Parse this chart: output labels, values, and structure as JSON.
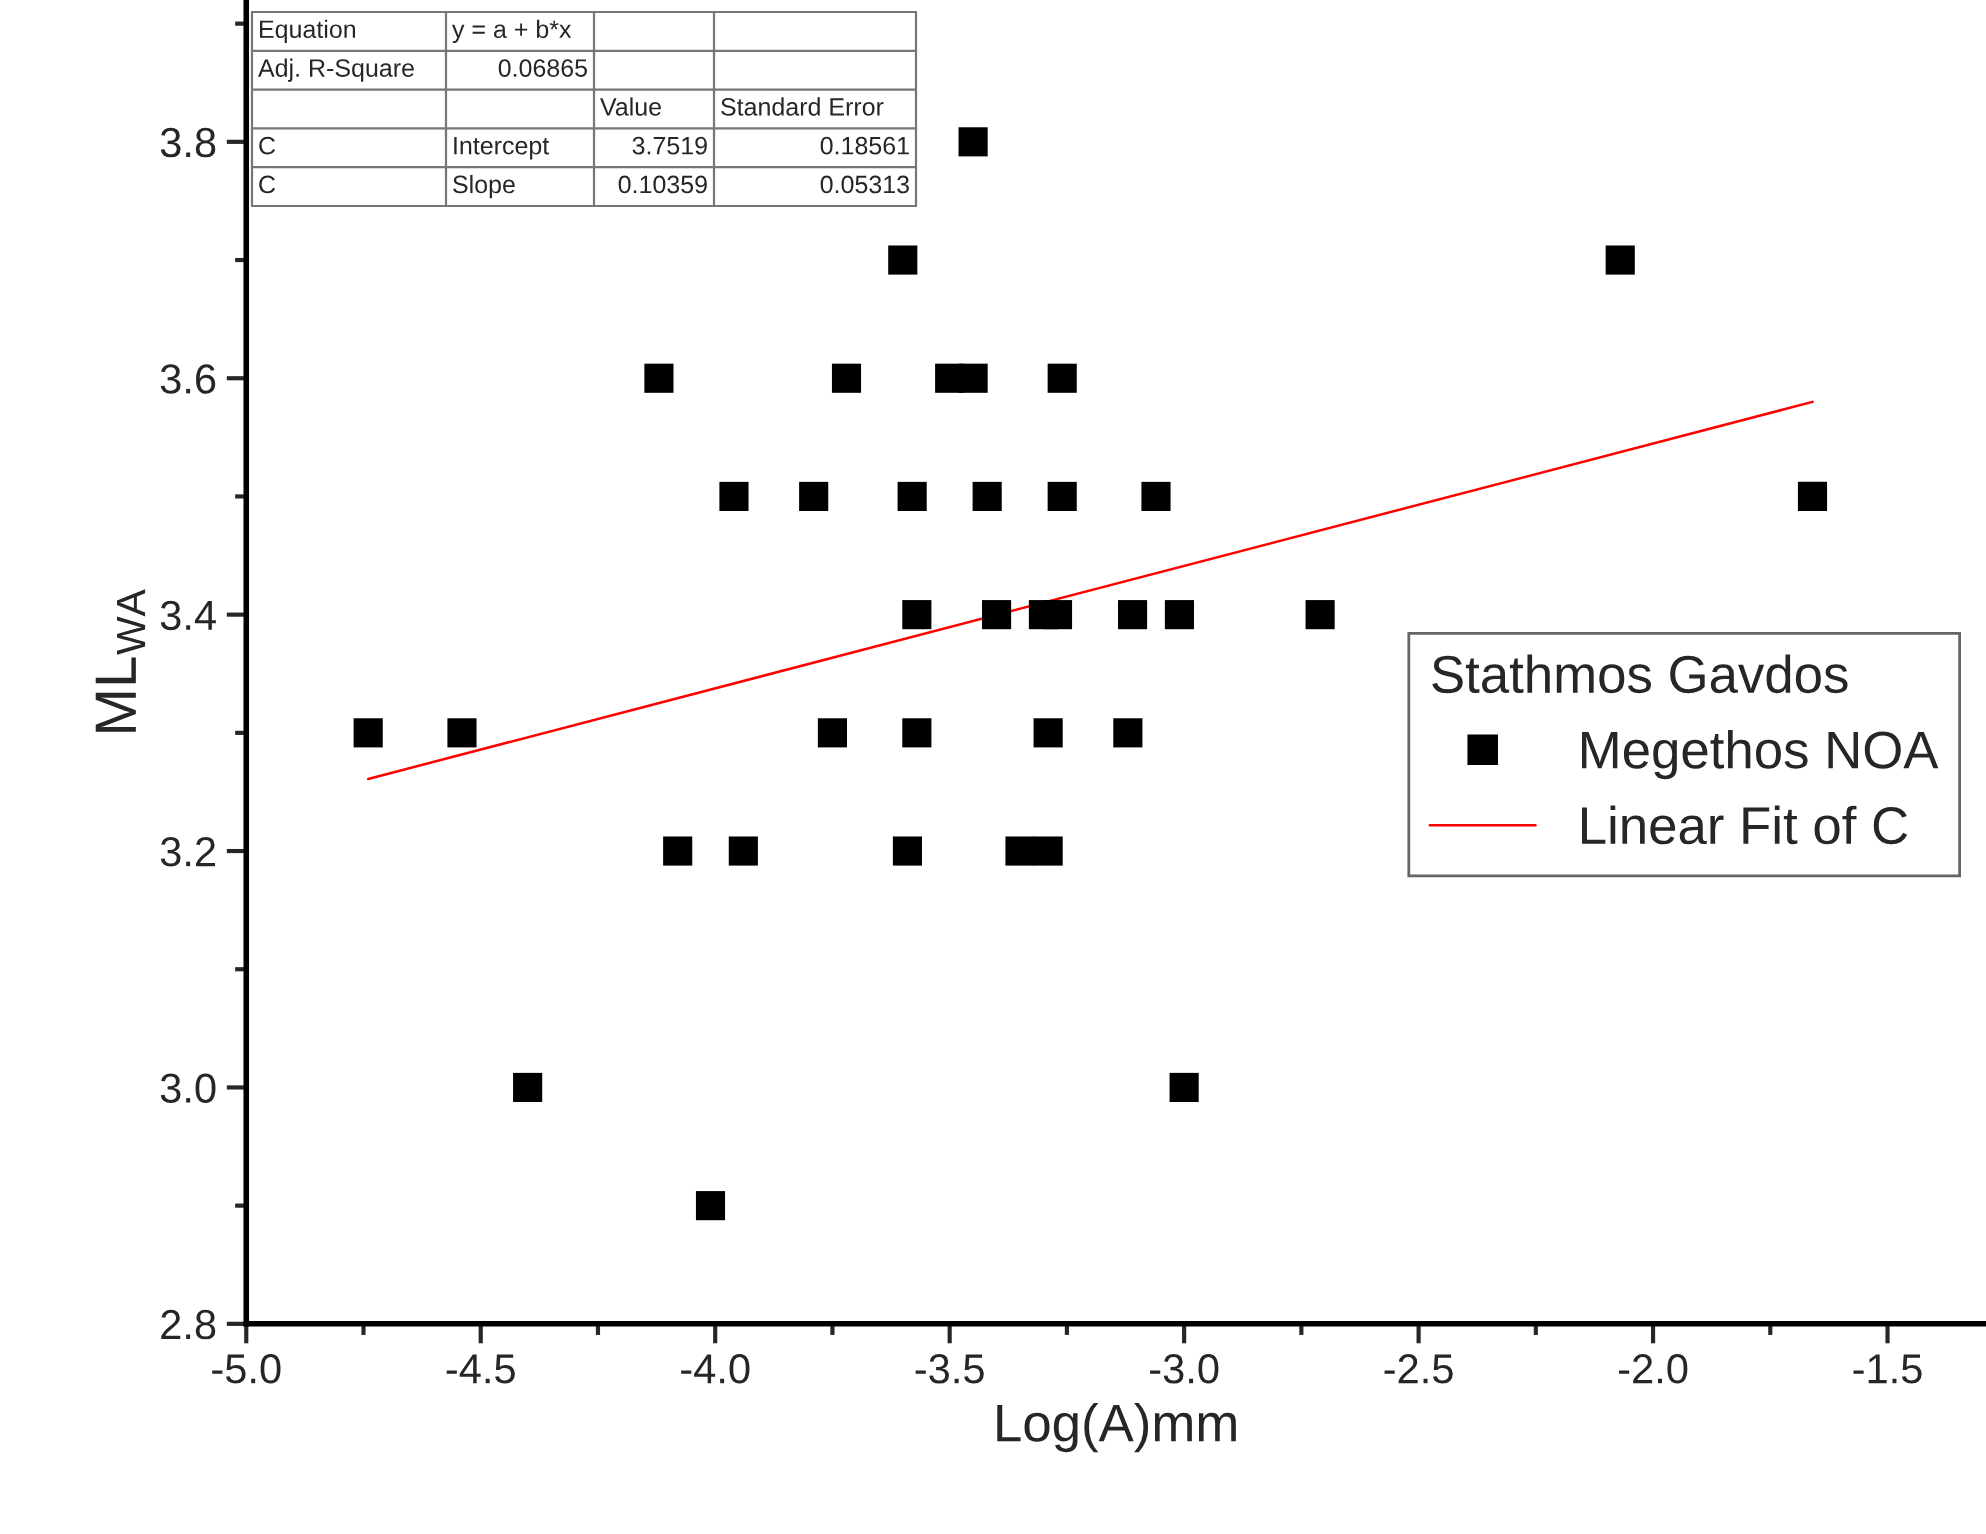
{
  "chart_data": {
    "type": "scatter",
    "xlabel": "Log(A)mm",
    "ylabel": "ML$_{WA}$",
    "legend_title": "Stathmos Gavdos",
    "series": [
      {
        "name": "Megethos NOA",
        "color": "#000000",
        "marker": "square",
        "x": [
          -3.45,
          -3.6,
          -2.07,
          -4.12,
          -3.72,
          -3.5,
          -3.45,
          -3.26,
          -3.96,
          -3.79,
          -3.58,
          -3.42,
          -3.26,
          -3.06,
          -1.66,
          -3.57,
          -3.4,
          -3.3,
          -3.27,
          -3.11,
          -3.01,
          -2.71,
          -4.74,
          -4.54,
          -3.75,
          -3.57,
          -3.29,
          -3.12,
          -4.08,
          -3.94,
          -3.59,
          -3.35,
          -3.29,
          -4.4,
          -3.0,
          -4.01
        ],
        "values": [
          3.8,
          3.7,
          3.7,
          3.6,
          3.6,
          3.6,
          3.6,
          3.6,
          3.5,
          3.5,
          3.5,
          3.5,
          3.5,
          3.5,
          3.5,
          3.4,
          3.4,
          3.4,
          3.4,
          3.4,
          3.4,
          3.4,
          3.3,
          3.3,
          3.3,
          3.3,
          3.3,
          3.3,
          3.2,
          3.2,
          3.2,
          3.2,
          3.2,
          3.0,
          3.0,
          2.9
        ]
      },
      {
        "name": "Linear Fit of C",
        "type": "line",
        "color": "#ff0000",
        "line_style": "solid",
        "x": [
          -4.74,
          -1.66
        ],
        "values": [
          3.261,
          3.58
        ]
      }
    ],
    "annotations": [
      "Equation",
      "y = a + b*x",
      "Adj. R-Square",
      "0.06865",
      "Value",
      "Standard Error",
      "C",
      "Intercept",
      "3.7519",
      "0.18561",
      "C",
      "Slope",
      "0.10359",
      "0.05313"
    ],
    "xlim": [
      -5.0,
      -1.29
    ],
    "ylim": [
      2.8,
      3.92
    ],
    "xticks": [
      {
        "value": -5.0,
        "label": "-5.0"
      },
      {
        "value": -4.5,
        "label": "-4.5"
      },
      {
        "value": -4.0,
        "label": "-4.0"
      },
      {
        "value": -3.5,
        "label": "-3.5"
      },
      {
        "value": -3.0,
        "label": "-3.0"
      },
      {
        "value": -2.5,
        "label": "-2.5"
      },
      {
        "value": -2.0,
        "label": "-2.0"
      },
      {
        "value": -1.5,
        "label": "-1.5"
      }
    ],
    "yticks": [
      {
        "value": 2.8,
        "label": "2.8"
      },
      {
        "value": 3.0,
        "label": "3.0"
      },
      {
        "value": 3.2,
        "label": "3.2"
      },
      {
        "value": 3.4,
        "label": "3.4"
      },
      {
        "value": 3.6,
        "label": "3.6"
      },
      {
        "value": 3.8,
        "label": "3.8"
      }
    ],
    "legend": "right",
    "grid": false
  }
}
